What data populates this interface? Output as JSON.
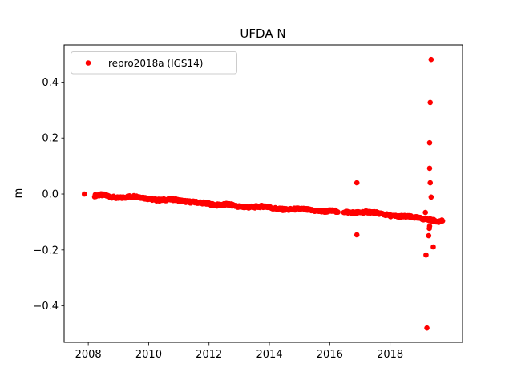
{
  "figure": {
    "title": "UFDA N",
    "ylabel": "m",
    "background": "#ffffff"
  },
  "legend": {
    "label": "repro2018a (IGS14)",
    "marker_color": "#ff0000",
    "position": "upper left"
  },
  "chart_data": {
    "type": "scatter",
    "title": "UFDA N",
    "xlabel": "",
    "ylabel": "m",
    "series_name": "repro2018a (IGS14)",
    "color": "#ff0000",
    "marker_radius_px": 3.3,
    "grid": false,
    "legend_position": "upper left",
    "xlim": [
      2007.2,
      2020.4
    ],
    "ylim": [
      -0.53,
      0.533
    ],
    "xticks": [
      2008,
      2010,
      2012,
      2014,
      2016,
      2018
    ],
    "xtick_labels": [
      "2008",
      "2010",
      "2012",
      "2014",
      "2016",
      "2018"
    ],
    "yticks": [
      -0.4,
      -0.2,
      0.0,
      0.2,
      0.4
    ],
    "ytick_labels": [
      "−0.4",
      "−0.2",
      "0.0",
      "0.2",
      "0.4"
    ],
    "first_point": [
      2007.87,
      0.0
    ],
    "band": {
      "start": 2008.21,
      "end": 2019.75,
      "step": 0.021,
      "jitter_m": 0.004
    },
    "gaps": [
      [
        2016.28,
        2016.45
      ]
    ],
    "band_anchors": [
      [
        2008.21,
        -0.006
      ],
      [
        2008.4,
        -0.003
      ],
      [
        2008.55,
        -0.004
      ],
      [
        2008.75,
        -0.01
      ],
      [
        2009.0,
        -0.015
      ],
      [
        2009.2,
        -0.012
      ],
      [
        2009.4,
        -0.009
      ],
      [
        2009.6,
        -0.008
      ],
      [
        2009.8,
        -0.013
      ],
      [
        2010.0,
        -0.017
      ],
      [
        2010.2,
        -0.021
      ],
      [
        2010.4,
        -0.022
      ],
      [
        2010.6,
        -0.02
      ],
      [
        2010.8,
        -0.019
      ],
      [
        2011.0,
        -0.023
      ],
      [
        2011.25,
        -0.027
      ],
      [
        2011.45,
        -0.029
      ],
      [
        2011.65,
        -0.03
      ],
      [
        2011.85,
        -0.032
      ],
      [
        2012.05,
        -0.037
      ],
      [
        2012.25,
        -0.04
      ],
      [
        2012.45,
        -0.038
      ],
      [
        2012.65,
        -0.037
      ],
      [
        2012.85,
        -0.042
      ],
      [
        2013.05,
        -0.046
      ],
      [
        2013.25,
        -0.047
      ],
      [
        2013.45,
        -0.047
      ],
      [
        2013.65,
        -0.045
      ],
      [
        2013.85,
        -0.044
      ],
      [
        2014.05,
        -0.049
      ],
      [
        2014.25,
        -0.053
      ],
      [
        2014.45,
        -0.055
      ],
      [
        2014.65,
        -0.056
      ],
      [
        2014.85,
        -0.054
      ],
      [
        2015.05,
        -0.053
      ],
      [
        2015.25,
        -0.056
      ],
      [
        2015.45,
        -0.059
      ],
      [
        2015.65,
        -0.061
      ],
      [
        2015.85,
        -0.062
      ],
      [
        2016.05,
        -0.06
      ],
      [
        2016.3,
        -0.062
      ],
      [
        2016.5,
        -0.064
      ],
      [
        2016.7,
        -0.066
      ],
      [
        2016.9,
        -0.067
      ],
      [
        2017.1,
        -0.065
      ],
      [
        2017.3,
        -0.064
      ],
      [
        2017.5,
        -0.067
      ],
      [
        2017.7,
        -0.07
      ],
      [
        2017.9,
        -0.075
      ],
      [
        2018.1,
        -0.079
      ],
      [
        2018.3,
        -0.08
      ],
      [
        2018.5,
        -0.08
      ],
      [
        2018.7,
        -0.082
      ],
      [
        2018.9,
        -0.085
      ],
      [
        2019.1,
        -0.089
      ],
      [
        2019.3,
        -0.092
      ],
      [
        2019.5,
        -0.096
      ],
      [
        2019.65,
        -0.098
      ],
      [
        2019.75,
        -0.094
      ]
    ],
    "outliers": [
      [
        2016.9,
        0.04
      ],
      [
        2016.9,
        -0.146
      ],
      [
        2019.36,
        0.481
      ],
      [
        2019.33,
        0.327
      ],
      [
        2019.31,
        0.183
      ],
      [
        2019.31,
        0.092
      ],
      [
        2019.33,
        0.04
      ],
      [
        2019.36,
        -0.011
      ],
      [
        2019.17,
        -0.066
      ],
      [
        2019.31,
        -0.115
      ],
      [
        2019.3,
        -0.123
      ],
      [
        2019.28,
        -0.149
      ],
      [
        2019.43,
        -0.189
      ],
      [
        2019.19,
        -0.218
      ],
      [
        2019.22,
        -0.479
      ]
    ]
  }
}
